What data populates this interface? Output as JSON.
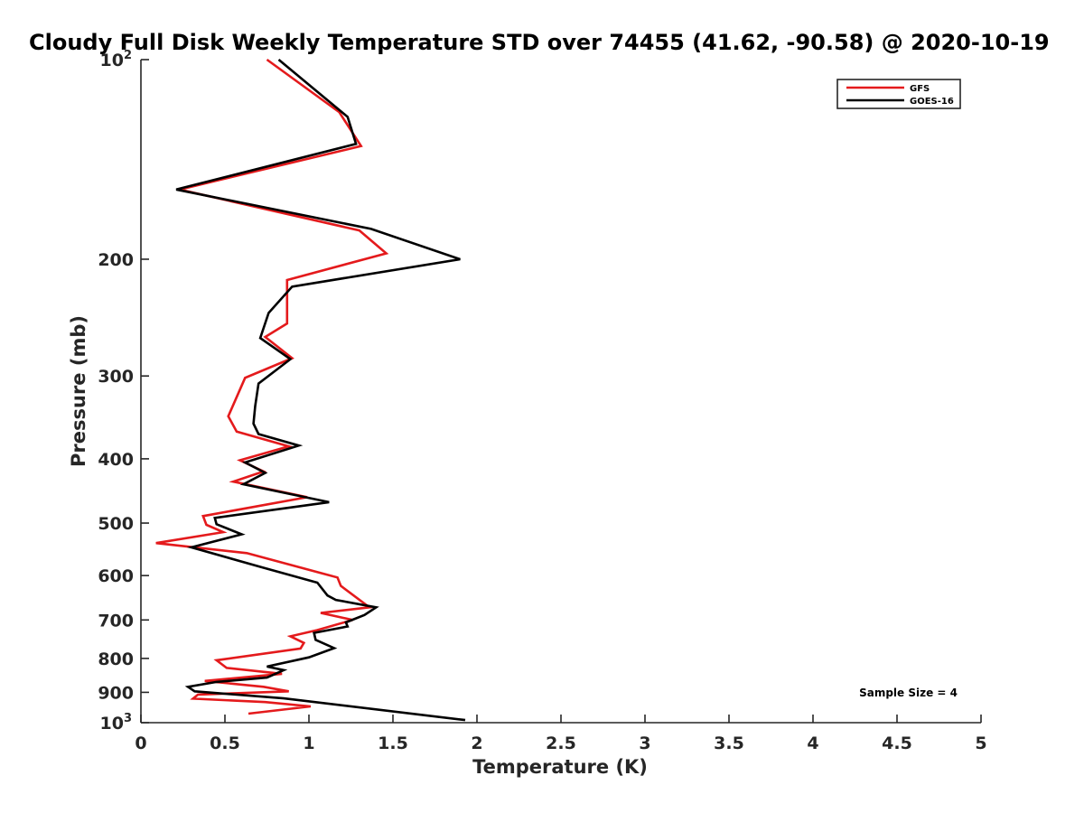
{
  "chart_data": {
    "type": "line",
    "title": "Cloudy Full Disk Weekly Temperature STD over 74455 (41.62, -90.58) @ 2020-10-19",
    "xlabel": "Temperature (K)",
    "ylabel": "Pressure (mb)",
    "xlim": [
      0,
      5
    ],
    "ylim": [
      100,
      1000
    ],
    "y_scale": "log",
    "y_reversed": true,
    "x_ticks": [
      "0",
      "0.5",
      "1",
      "1.5",
      "2",
      "2.5",
      "3",
      "3.5",
      "4",
      "4.5",
      "5"
    ],
    "y_ticks": [
      {
        "value": 100,
        "base": "10",
        "exp": "2"
      },
      {
        "value": 200,
        "label": "200"
      },
      {
        "value": 300,
        "label": "300"
      },
      {
        "value": 400,
        "label": "400"
      },
      {
        "value": 500,
        "label": "500"
      },
      {
        "value": 600,
        "label": "600"
      },
      {
        "value": 700,
        "label": "700"
      },
      {
        "value": 800,
        "label": "800"
      },
      {
        "value": 900,
        "label": "900"
      },
      {
        "value": 1000,
        "base": "10",
        "exp": "3"
      }
    ],
    "grid": false,
    "legend_position": "top-right",
    "annotation": "Sample Size = 4",
    "series": [
      {
        "name": "GFS",
        "color": "#e41a1c",
        "points": [
          [
            0.75,
            100
          ],
          [
            1.18,
            120
          ],
          [
            1.31,
            135
          ],
          [
            0.23,
            157
          ],
          [
            1.3,
            181
          ],
          [
            1.46,
            196
          ],
          [
            0.87,
            215
          ],
          [
            0.87,
            250
          ],
          [
            0.74,
            262
          ],
          [
            0.9,
            282
          ],
          [
            0.62,
            302
          ],
          [
            0.52,
            345
          ],
          [
            0.57,
            364
          ],
          [
            0.88,
            383
          ],
          [
            0.59,
            402
          ],
          [
            0.73,
            418
          ],
          [
            0.55,
            433
          ],
          [
            0.99,
            457
          ],
          [
            0.37,
            488
          ],
          [
            0.39,
            503
          ],
          [
            0.49,
            516
          ],
          [
            0.09,
            536
          ],
          [
            0.63,
            555
          ],
          [
            1.17,
            604
          ],
          [
            1.19,
            622
          ],
          [
            1.36,
            670
          ],
          [
            1.07,
            683
          ],
          [
            1.26,
            700
          ],
          [
            1.05,
            725
          ],
          [
            0.89,
            741
          ],
          [
            0.97,
            758
          ],
          [
            0.95,
            773
          ],
          [
            0.45,
            805
          ],
          [
            0.51,
            827
          ],
          [
            0.84,
            844
          ],
          [
            0.38,
            865
          ],
          [
            0.73,
            883
          ],
          [
            0.88,
            897
          ],
          [
            0.34,
            907
          ],
          [
            0.31,
            920
          ],
          [
            0.74,
            931
          ],
          [
            1.01,
            945
          ],
          [
            0.64,
            969
          ]
        ]
      },
      {
        "name": "GOES-16",
        "color": "#000000",
        "points": [
          [
            0.82,
            100
          ],
          [
            1.23,
            122
          ],
          [
            1.28,
            134
          ],
          [
            0.21,
            157
          ],
          [
            1.37,
            180
          ],
          [
            1.9,
            200
          ],
          [
            0.9,
            220
          ],
          [
            0.76,
            241
          ],
          [
            0.71,
            263
          ],
          [
            0.89,
            283
          ],
          [
            0.7,
            308
          ],
          [
            0.68,
            333
          ],
          [
            0.67,
            354
          ],
          [
            0.7,
            367
          ],
          [
            0.94,
            382
          ],
          [
            0.62,
            405
          ],
          [
            0.74,
            420
          ],
          [
            0.61,
            437
          ],
          [
            1.12,
            465
          ],
          [
            0.44,
            491
          ],
          [
            0.45,
            502
          ],
          [
            0.6,
            520
          ],
          [
            0.3,
            544
          ],
          [
            0.72,
            583
          ],
          [
            1.05,
            615
          ],
          [
            1.11,
            643
          ],
          [
            1.16,
            653
          ],
          [
            1.4,
            670
          ],
          [
            1.33,
            688
          ],
          [
            1.22,
            706
          ],
          [
            1.23,
            716
          ],
          [
            1.03,
            732
          ],
          [
            1.04,
            750
          ],
          [
            1.15,
            772
          ],
          [
            1.0,
            797
          ],
          [
            0.75,
            823
          ],
          [
            0.85,
            833
          ],
          [
            0.75,
            855
          ],
          [
            0.45,
            868
          ],
          [
            0.28,
            883
          ],
          [
            0.32,
            897
          ],
          [
            0.85,
            919
          ],
          [
            1.93,
            991
          ]
        ]
      }
    ]
  }
}
